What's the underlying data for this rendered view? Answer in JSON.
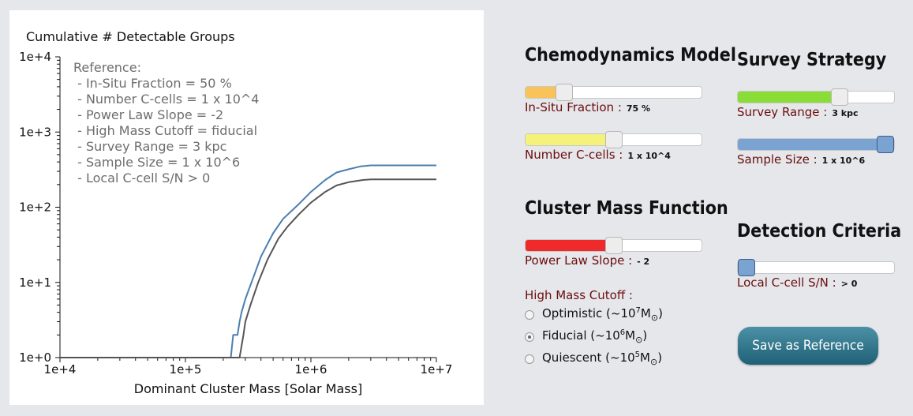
{
  "chart": {
    "title": "Cumulative # Detectable Groups",
    "xlabel": "Dominant Cluster Mass [Solar Mass]",
    "reference_lines": [
      "Reference:",
      " - In-Situ Fraction = 50 %",
      " - Number C-cells = 1 x 10^4",
      " - Power Law Slope = -2",
      " - High Mass Cutoff = fiducial",
      " - Survey Range = 3 kpc",
      " - Sample Size = 1 x 10^6",
      " - Local C-cell S/N > 0"
    ]
  },
  "chart_data": {
    "type": "line",
    "title": "Cumulative # Detectable Groups",
    "xlabel": "Dominant Cluster Mass [Solar Mass]",
    "ylabel": "",
    "xscale": "log",
    "yscale": "log",
    "xlim": [
      10000,
      10000000
    ],
    "ylim": [
      1,
      10000
    ],
    "x_ticks": [
      "1e+4",
      "1e+5",
      "1e+6",
      "1e+7"
    ],
    "y_ticks": [
      "1e+0",
      "1e+1",
      "1e+2",
      "1e+3",
      "1e+4"
    ],
    "series": [
      {
        "color": "#4a7fae",
        "x": [
          10000,
          230000,
          240000,
          260000,
          270000,
          280000,
          300000,
          350000,
          400000,
          500000,
          600000,
          800000,
          1000000,
          1300000,
          1600000,
          2000000,
          2500000,
          3000000,
          5000000,
          10000000
        ],
        "y": [
          1,
          1,
          2,
          2,
          3,
          4,
          6,
          12,
          22,
          45,
          70,
          110,
          160,
          230,
          290,
          320,
          350,
          360,
          360,
          360
        ]
      },
      {
        "color": "#555555",
        "x": [
          10000,
          270000,
          290000,
          300000,
          330000,
          380000,
          450000,
          550000,
          650000,
          800000,
          1000000,
          1300000,
          1600000,
          2000000,
          2600000,
          3000000,
          5000000,
          10000000
        ],
        "y": [
          1,
          1,
          2,
          3,
          5,
          10,
          20,
          38,
          55,
          80,
          115,
          160,
          195,
          215,
          230,
          235,
          235,
          235
        ]
      }
    ]
  },
  "headings": {
    "chemo": "Chemodynamics Model",
    "survey": "Survey Strategy",
    "cluster": "Cluster Mass Function",
    "detection": "Detection Criteria"
  },
  "controls": {
    "insitu": {
      "label": "In-Situ Fraction :",
      "value": "75 %",
      "level": 0.19,
      "color": "#f9c35a"
    },
    "ncells": {
      "label": "Number C-cells :",
      "value": "1 x 10^4",
      "level": 0.5,
      "color": "#f4f27a"
    },
    "plslope": {
      "label": "Power Law Slope :",
      "value": "- 2",
      "level": 0.5,
      "color": "#ee2a2a"
    },
    "range": {
      "label": "Survey Range :",
      "value": "3 kpc",
      "level": 0.67,
      "color": "#8adc37"
    },
    "sample": {
      "label": "Sample Size :",
      "value": "1 x 10^6",
      "level": 1.0,
      "color": "#7ba3d2"
    },
    "snr": {
      "label": "Local C-cell S/N :",
      "value": "> 0",
      "level": 0.0,
      "color": "#7ba3d2"
    }
  },
  "cutoff": {
    "label": "High Mass Cutoff :",
    "options": [
      {
        "prefix": "Optimistic (~10",
        "exp": "7",
        "unit": "M",
        "sym": "⊙",
        "suffix": ")",
        "selected": false
      },
      {
        "prefix": "Fiducial (~10",
        "exp": "6",
        "unit": "M",
        "sym": "⊙",
        "suffix": ")",
        "selected": true
      },
      {
        "prefix": "Quiescent (~10",
        "exp": "5",
        "unit": "M",
        "sym": "⊙",
        "suffix": ")",
        "selected": false
      }
    ]
  },
  "save_button": {
    "label": "Save as Reference"
  }
}
